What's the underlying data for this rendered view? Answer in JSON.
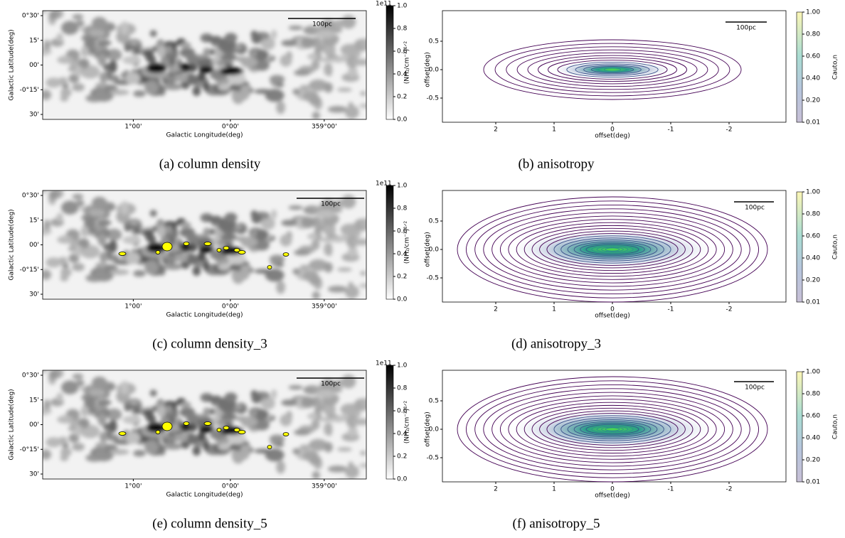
{
  "panels": [
    {
      "kind": "map",
      "caption": "(a) column density",
      "y_label": "Galactic Latitude(deg)",
      "y_ticks": [
        "0°30'",
        "15'",
        "00'",
        "-0°15'",
        "30'"
      ],
      "x_label": "Galactic Longitude(deg)",
      "x_ticks": [
        "1°00'",
        "0°00'",
        "359°00'"
      ],
      "scale_bar": "100pc",
      "colorbar": {
        "exponent": "1e11",
        "label": "(NH₂/cm⁻²)¹ᐟ²",
        "ticks": [
          "0.0",
          "0.2",
          "0.4",
          "0.6",
          "0.8",
          "1.0"
        ]
      }
    },
    {
      "kind": "contour",
      "caption": "(b) anisotropy",
      "y_label": "offset(deg)",
      "y_ticks": [
        "0.5",
        "0.0",
        "-0.5"
      ],
      "x_label": "offset(deg)",
      "x_ticks": [
        "2",
        "1",
        "0",
        "-1",
        "-2"
      ],
      "scale_bar": "100pc",
      "colorbar": {
        "label": "Cauto,n",
        "ticks": [
          "0.01",
          "0.20",
          "0.40",
          "0.60",
          "0.80",
          "1.00"
        ]
      }
    },
    {
      "kind": "map",
      "caption": "(c) column density_3",
      "y_label": "Galactic Latitude(deg)",
      "y_ticks": [
        "0°30'",
        "15'",
        "00'",
        "-0°15'",
        "30'"
      ],
      "x_label": "Galactic Longitude(deg)",
      "x_ticks": [
        "1°00'",
        "0°00'",
        "359°00'"
      ],
      "scale_bar": "100pc",
      "colorbar": {
        "exponent": "1e11",
        "label": "(NH₂/cm⁻²)¹ᐟ²",
        "ticks": [
          "0.0",
          "0.2",
          "0.4",
          "0.6",
          "0.8",
          "1.0"
        ]
      }
    },
    {
      "kind": "contour",
      "caption": "(d) anisotropy_3",
      "y_label": "offset(deg)",
      "y_ticks": [
        "0.5",
        "0.0",
        "-0.5"
      ],
      "x_label": "offset(deg)",
      "x_ticks": [
        "2",
        "1",
        "0",
        "-1",
        "-2"
      ],
      "scale_bar": "100pc",
      "colorbar": {
        "label": "Cauto,n",
        "ticks": [
          "0.01",
          "0.20",
          "0.40",
          "0.60",
          "0.80",
          "1.00"
        ]
      }
    },
    {
      "kind": "map",
      "caption": "(e) column density_5",
      "y_label": "Galactic Latitude(deg)",
      "y_ticks": [
        "0°30'",
        "15'",
        "00'",
        "-0°15'",
        "30'"
      ],
      "x_label": "Galactic Longitude(deg)",
      "x_ticks": [
        "1°00'",
        "0°00'",
        "359°00'"
      ],
      "scale_bar": "100pc",
      "colorbar": {
        "exponent": "1e11",
        "label": "(NH₂/cm⁻²)¹ᐟ²",
        "ticks": [
          "0.0",
          "0.2",
          "0.4",
          "0.6",
          "0.8",
          "1.0"
        ]
      }
    },
    {
      "kind": "contour",
      "caption": "(f) anisotropy_5",
      "y_label": "offset(deg)",
      "y_ticks": [
        "0.5",
        "0.0",
        "-0.5"
      ],
      "x_label": "offset(deg)",
      "x_ticks": [
        "2",
        "1",
        "0",
        "-1",
        "-2"
      ],
      "scale_bar": "100pc",
      "colorbar": {
        "label": "Cauto,n",
        "ticks": [
          "0.01",
          "0.20",
          "0.40",
          "0.60",
          "0.80",
          "1.00"
        ]
      }
    }
  ]
}
